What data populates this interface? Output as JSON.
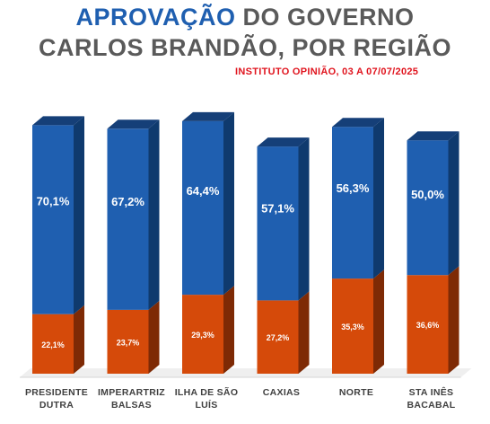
{
  "header": {
    "title_accent": "APROVAÇÃO",
    "title_rest": " DO GOVERNO",
    "title_line2": "CARLOS BRANDÃO, POR REGIÃO",
    "subtitle": "INSTITUTO OPINIÃO, 03 A 07/07/2025"
  },
  "colors": {
    "approve": "#1f5fb0",
    "approve_side": "#0f3a6e",
    "approve_top": "#153f78",
    "disapprove": "#d54a0a",
    "disapprove_side": "#7e2a05",
    "title_accent": "#1f5fb0",
    "title_rest": "#5a5a5a",
    "subtitle": "#e0141e"
  },
  "chart_data": {
    "type": "bar",
    "stacked": true,
    "title": "APROVAÇÃO DO GOVERNO CARLOS BRANDÃO, POR REGIÃO",
    "subtitle": "INSTITUTO OPINIÃO, 03 A 07/07/2025",
    "categories": [
      [
        "PRESIDENTE",
        "DUTRA"
      ],
      [
        "IMPERARTRIZ",
        "BALSAS"
      ],
      [
        "ILHA DE SÃO",
        "LUÍS"
      ],
      [
        "CAXIAS"
      ],
      [
        "NORTE"
      ],
      [
        "STA INÊS",
        "BACABAL"
      ]
    ],
    "series": [
      {
        "values": [
          22.1,
          23.7,
          29.3,
          27.2,
          35.3,
          36.6
        ],
        "labels": [
          "22,1%",
          "23,7%",
          "29,3%",
          "27,2%",
          "35,3%",
          "36,6%"
        ]
      },
      {
        "values": [
          70.1,
          67.2,
          64.4,
          57.1,
          56.3,
          50.0
        ],
        "labels": [
          "70,1%",
          "67,2%",
          "64,4%",
          "57,1%",
          "56,3%",
          "50,0%"
        ]
      }
    ],
    "ylim": [
      0,
      100
    ],
    "grid": false,
    "legend": "none"
  }
}
